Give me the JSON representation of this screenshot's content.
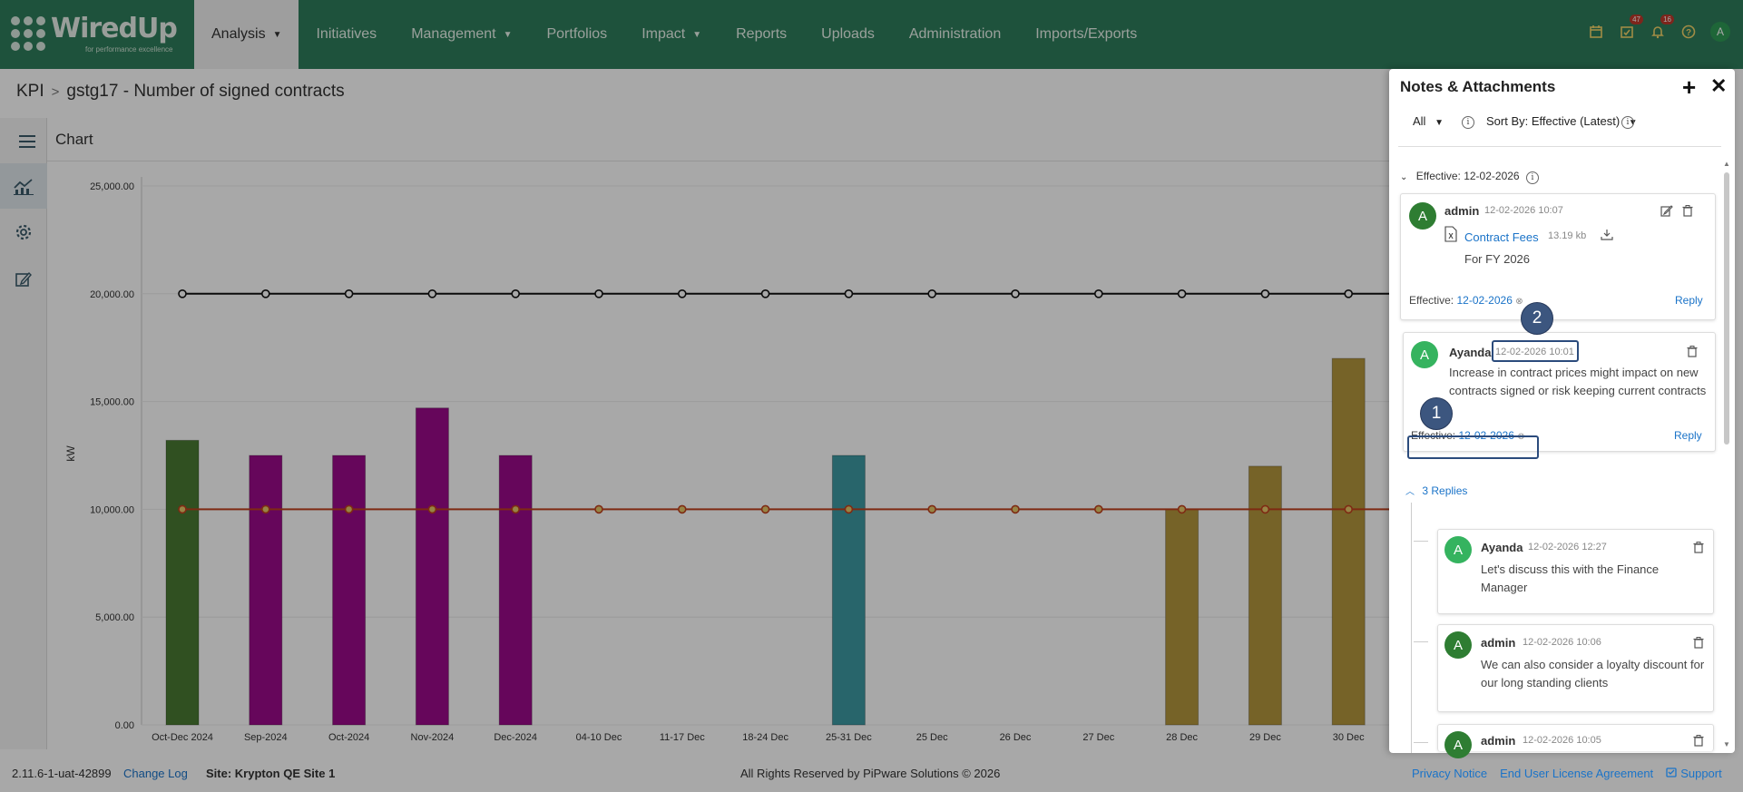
{
  "logo": {
    "brand": "WiredUp",
    "tagline": "for performance excellence"
  },
  "nav": {
    "items": [
      {
        "label": "Analysis",
        "caret": true,
        "active": true
      },
      {
        "label": "Initiatives",
        "caret": false
      },
      {
        "label": "Management",
        "caret": true
      },
      {
        "label": "Portfolios",
        "caret": false
      },
      {
        "label": "Impact",
        "caret": true
      },
      {
        "label": "Reports",
        "caret": false
      },
      {
        "label": "Uploads",
        "caret": false
      },
      {
        "label": "Administration",
        "caret": false
      },
      {
        "label": "Imports/Exports",
        "caret": false
      }
    ],
    "tasks_badge": "47",
    "notifications_badge": "16",
    "avatar_letter": "A"
  },
  "breadcrumb": {
    "root": "KPI",
    "current": "gstg17 - Number of signed contracts"
  },
  "chart_header": {
    "title": "Chart"
  },
  "chart_data": {
    "type": "bar",
    "ylabel": "kW",
    "ylim": [
      0,
      25000
    ],
    "y_ticks": [
      "0.00",
      "5,000.00",
      "10,000.00",
      "15,000.00",
      "20,000.00",
      "25,000.00"
    ],
    "categories": [
      "Oct-Dec 2024",
      "Sep-2024",
      "Oct-2024",
      "Nov-2024",
      "Dec-2024",
      "04-10 Dec",
      "11-17 Dec",
      "18-24 Dec",
      "25-31 Dec",
      "25 Dec",
      "26 Dec",
      "27 Dec",
      "28 Dec",
      "29 Dec",
      "30 Dec"
    ],
    "values": [
      13200,
      12500,
      12500,
      14700,
      12500,
      0,
      0,
      0,
      12500,
      0,
      0,
      0,
      10000,
      12000,
      17000
    ],
    "bar_colors": [
      "#4a7a32",
      "#9c0a8a",
      "#9c0a8a",
      "#9c0a8a",
      "#9c0a8a",
      "#9c0a8a",
      "#9c0a8a",
      "#9c0a8a",
      "#3e9aa3",
      "#b4963e",
      "#b4963e",
      "#b4963e",
      "#b4963e",
      "#b4963e",
      "#b4963e"
    ],
    "lines": [
      {
        "values": [
          20000,
          20000,
          20000,
          20000,
          20000,
          20000,
          20000,
          20000,
          20000,
          20000,
          20000,
          20000,
          20000,
          20000,
          20000
        ],
        "color": "#111111"
      },
      {
        "values": [
          10000,
          10000,
          10000,
          10000,
          10000,
          10000,
          10000,
          10000,
          10000,
          10000,
          10000,
          10000,
          10000,
          10000,
          10000
        ],
        "color": "#c0401e"
      }
    ]
  },
  "footer": {
    "version": "2.11.6-1-uat-42899",
    "change_log": "Change Log",
    "site": "Site: Krypton QE Site 1",
    "rights": "All Rights Reserved by PiPware Solutions © 2026",
    "privacy": "Privacy Notice",
    "eula": "End User License Agreement",
    "support": "Support"
  },
  "panel": {
    "title": "Notes & Attachments",
    "filter_label": "All",
    "sort_label": "Sort By: Effective (Latest)",
    "section_label": "Effective: 12-02-2026",
    "notes": [
      {
        "author": "admin",
        "timestamp": "12-02-2026 10:07",
        "attachment_name": "Contract Fees",
        "attachment_size": "13.19 kb",
        "text": "For FY 2026",
        "effective_label": "Effective:",
        "effective_date": "12-02-2026",
        "reply_label": "Reply"
      },
      {
        "author": "Ayanda",
        "timestamp": "12-02-2026 10:01",
        "text": "Increase in contract prices might impact on new contracts signed or risk keeping current contracts",
        "effective_label": "Effective:",
        "effective_date": "12-02-2026",
        "reply_label": "Reply"
      }
    ],
    "replies_toggle": "3 Replies",
    "replies": [
      {
        "author": "Ayanda",
        "timestamp": "12-02-2026 12:27",
        "text": "Let's discuss this with the Finance Manager"
      },
      {
        "author": "admin",
        "timestamp": "12-02-2026 10:06",
        "text": "We can also consider a loyalty discount for our long standing clients"
      },
      {
        "author": "admin",
        "timestamp": "12-02-2026 10:05",
        "text": ""
      }
    ],
    "markers": [
      "1",
      "2"
    ]
  }
}
